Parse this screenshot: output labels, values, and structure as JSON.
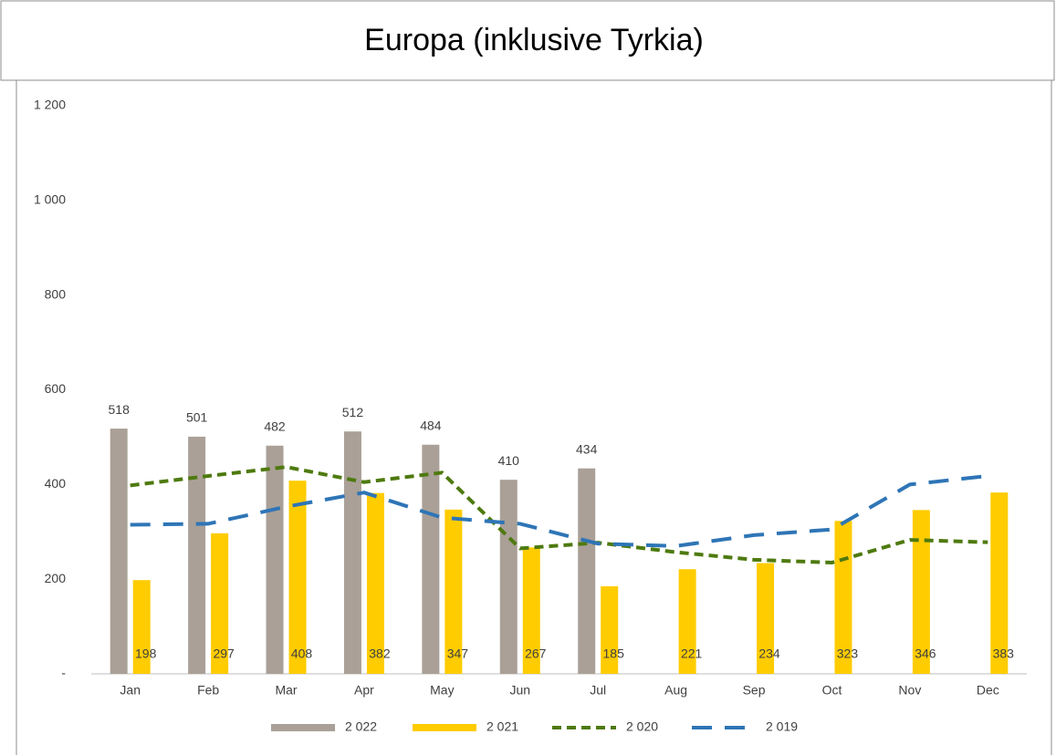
{
  "chart_data": {
    "type": "bar-line",
    "title": "Europa (inklusive Tyrkia)",
    "categories": [
      "Jan",
      "Feb",
      "Mar",
      "Apr",
      "May",
      "Jun",
      "Jul",
      "Aug",
      "Sep",
      "Oct",
      "Nov",
      "Dec"
    ],
    "series": [
      {
        "name": "2 022",
        "type": "bar",
        "color": "#aaa097",
        "values": [
          518,
          501,
          482,
          512,
          484,
          410,
          434,
          null,
          null,
          null,
          null,
          null
        ]
      },
      {
        "name": "2 021",
        "type": "bar",
        "color": "#ffcc00",
        "values": [
          198,
          297,
          408,
          382,
          347,
          267,
          185,
          221,
          234,
          323,
          346,
          383
        ]
      },
      {
        "name": "2 020",
        "type": "line",
        "dash": "short",
        "color": "#4e7a0f",
        "values": [
          398,
          418,
          437,
          405,
          425,
          265,
          277,
          257,
          241,
          235,
          283,
          278
        ]
      },
      {
        "name": "2 019",
        "type": "line",
        "dash": "long",
        "color": "#2e75b6",
        "values": [
          315,
          317,
          353,
          383,
          330,
          317,
          275,
          270,
          293,
          305,
          400,
          418
        ]
      }
    ],
    "ylim": [
      0,
      1200
    ],
    "yticks": [
      {
        "value": 0,
        "label": "-"
      },
      200,
      400,
      600,
      800,
      {
        "value": 1000,
        "label": "1 000"
      },
      {
        "value": 1200,
        "label": "1 200"
      }
    ],
    "grid": false,
    "legend": "bottom"
  }
}
